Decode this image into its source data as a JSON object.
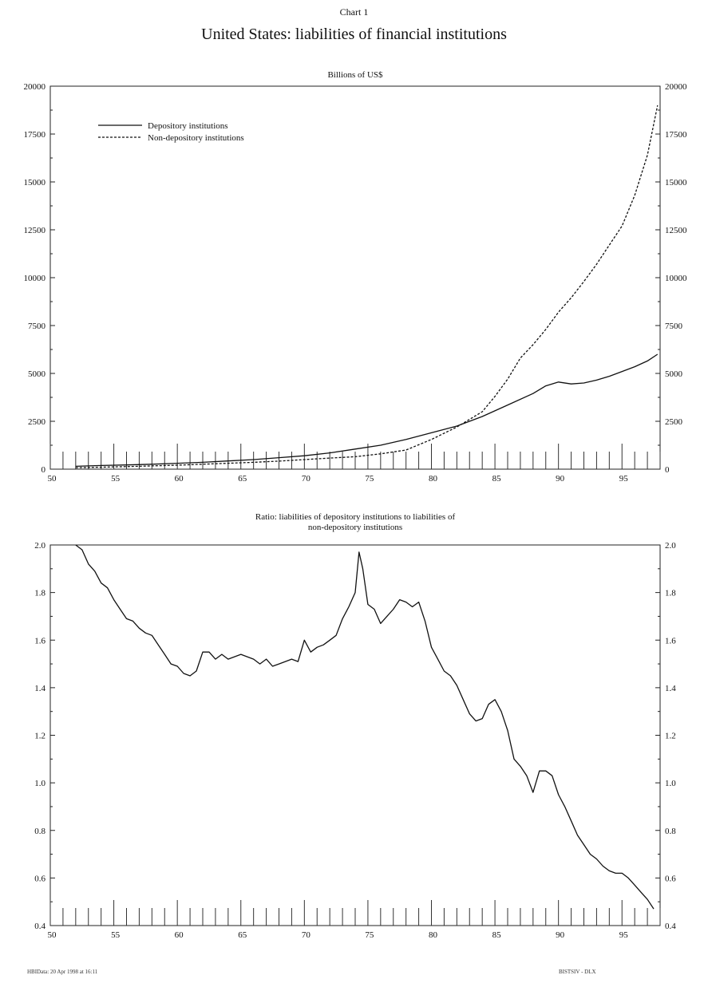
{
  "header": {
    "chart_number": "Chart 1",
    "title": "United States: liabilities of financial institutions"
  },
  "footer": {
    "left": "HBIData: 20 Apr 1998 at 16:11",
    "right": "BISTSIV - DLX"
  },
  "chart_data": [
    {
      "type": "line",
      "title": "Billions of US$",
      "ylim": [
        0,
        20000
      ],
      "xlim": [
        1950,
        1998
      ],
      "yticks": [
        0,
        2500,
        5000,
        7500,
        10000,
        12500,
        15000,
        17500,
        20000
      ],
      "xtick_labels": [
        "50",
        "55",
        "60",
        "65",
        "70",
        "75",
        "80",
        "85",
        "90",
        "95"
      ],
      "legend_position": "top-left",
      "series": [
        {
          "name": "Depository institutions",
          "style": "solid",
          "x": [
            1952,
            1954,
            1956,
            1958,
            1960,
            1962,
            1964,
            1966,
            1968,
            1970,
            1972,
            1974,
            1976,
            1978,
            1980,
            1982,
            1984,
            1986,
            1988,
            1989,
            1990,
            1991,
            1992,
            1993,
            1994,
            1995,
            1996,
            1997,
            1997.8
          ],
          "values": [
            150,
            190,
            220,
            260,
            310,
            360,
            430,
            500,
            600,
            700,
            850,
            1050,
            1250,
            1550,
            1900,
            2250,
            2750,
            3350,
            3950,
            4350,
            4550,
            4450,
            4500,
            4650,
            4850,
            5100,
            5350,
            5650,
            6000
          ]
        },
        {
          "name": "Non-depository institutions",
          "style": "dashed",
          "x": [
            1952,
            1954,
            1956,
            1958,
            1960,
            1962,
            1964,
            1966,
            1968,
            1970,
            1972,
            1974,
            1976,
            1978,
            1980,
            1982,
            1984,
            1985,
            1986,
            1987,
            1988,
            1989,
            1990,
            1991,
            1992,
            1993,
            1994,
            1995,
            1996,
            1997,
            1997.8
          ],
          "values": [
            75,
            105,
            135,
            170,
            210,
            260,
            310,
            360,
            420,
            500,
            580,
            650,
            800,
            1000,
            1550,
            2200,
            3000,
            3800,
            4700,
            5800,
            6500,
            7300,
            8200,
            8950,
            9800,
            10700,
            11700,
            12700,
            14300,
            16400,
            19000
          ]
        }
      ]
    },
    {
      "type": "line",
      "title": "Ratio: liabilities of depository institutions to liabilities of non-depository institutions",
      "ylim": [
        0.4,
        2.0
      ],
      "xlim": [
        1950,
        1998
      ],
      "yticks": [
        "0.4",
        "0.6",
        "0.8",
        "1.0",
        "1.2",
        "1.4",
        "1.6",
        "1.8",
        "2.0"
      ],
      "xtick_labels": [
        "50",
        "55",
        "60",
        "65",
        "70",
        "75",
        "80",
        "85",
        "90",
        "95"
      ],
      "series": [
        {
          "style": "solid",
          "x": [
            1952,
            1952.5,
            1953,
            1953.5,
            1954,
            1954.5,
            1955,
            1955.5,
            1956,
            1956.5,
            1957,
            1957.5,
            1958,
            1958.5,
            1959,
            1959.5,
            1960,
            1960.5,
            1961,
            1961.5,
            1962,
            1962.5,
            1963,
            1963.5,
            1964,
            1964.5,
            1965,
            1965.5,
            1966,
            1966.5,
            1967,
            1967.5,
            1968,
            1968.5,
            1969,
            1969.5,
            1970,
            1970.5,
            1971,
            1971.5,
            1972,
            1972.5,
            1973,
            1973.5,
            1974,
            1974.3,
            1974.6,
            1975,
            1975.5,
            1976,
            1976.5,
            1977,
            1977.5,
            1978,
            1978.5,
            1979,
            1979.5,
            1980,
            1980.5,
            1981,
            1981.5,
            1982,
            1982.5,
            1983,
            1983.5,
            1984,
            1984.5,
            1985,
            1985.5,
            1986,
            1986.5,
            1987,
            1987.5,
            1988,
            1988.5,
            1989,
            1989.5,
            1990,
            1990.5,
            1991,
            1991.5,
            1992,
            1992.5,
            1993,
            1993.5,
            1994,
            1994.5,
            1995,
            1995.5,
            1996,
            1996.5,
            1997,
            1997.5
          ],
          "values": [
            2.0,
            1.98,
            1.92,
            1.89,
            1.84,
            1.82,
            1.77,
            1.73,
            1.69,
            1.68,
            1.65,
            1.63,
            1.62,
            1.58,
            1.54,
            1.5,
            1.49,
            1.46,
            1.45,
            1.47,
            1.55,
            1.55,
            1.52,
            1.54,
            1.52,
            1.53,
            1.54,
            1.53,
            1.52,
            1.5,
            1.52,
            1.49,
            1.5,
            1.51,
            1.52,
            1.51,
            1.6,
            1.55,
            1.57,
            1.58,
            1.6,
            1.62,
            1.69,
            1.74,
            1.8,
            1.97,
            1.9,
            1.75,
            1.73,
            1.67,
            1.7,
            1.73,
            1.77,
            1.76,
            1.74,
            1.76,
            1.68,
            1.57,
            1.52,
            1.47,
            1.45,
            1.41,
            1.35,
            1.29,
            1.26,
            1.27,
            1.33,
            1.35,
            1.3,
            1.22,
            1.1,
            1.07,
            1.03,
            0.96,
            1.05,
            1.05,
            1.03,
            0.95,
            0.9,
            0.84,
            0.78,
            0.74,
            0.7,
            0.68,
            0.65,
            0.63,
            0.62,
            0.62,
            0.6,
            0.57,
            0.54,
            0.51,
            0.47
          ]
        }
      ]
    }
  ]
}
